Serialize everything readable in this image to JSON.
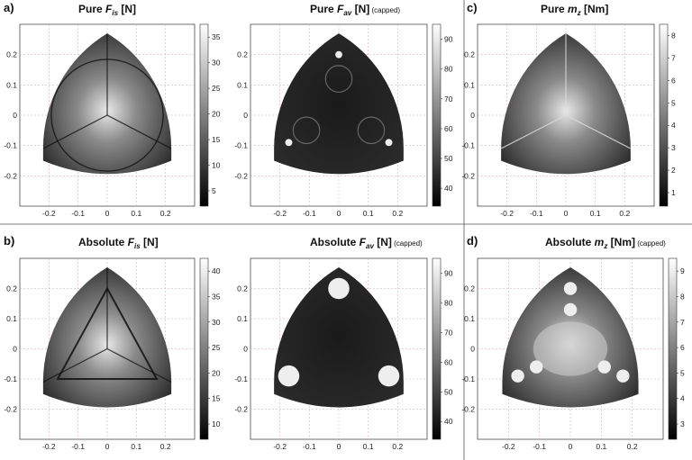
{
  "figure": {
    "panels": [
      {
        "id": "a",
        "letter": "a)",
        "word": "Pure",
        "sym": "F",
        "sub": "is",
        "unit": "[N]",
        "note": "",
        "cmap": [
          5,
          10,
          15,
          20,
          25,
          30,
          35
        ],
        "has_cb": true,
        "pattern": "pure_fis"
      },
      {
        "id": "pure-fav",
        "letter": "",
        "word": "Pure",
        "sym": "F",
        "sub": "av",
        "unit": "[N]",
        "note": "(capped)",
        "cmap": [
          40,
          50,
          60,
          70,
          80,
          90
        ],
        "has_cb": true,
        "pattern": "pure_fav"
      },
      {
        "id": "c",
        "letter": "c)",
        "word": "Pure",
        "sym": "m",
        "sub": "z",
        "unit": "[Nm]",
        "note": "",
        "cmap": [
          1,
          2,
          3,
          4,
          5,
          6,
          7,
          8
        ],
        "has_cb": true,
        "pattern": "pure_mz"
      },
      {
        "id": "b",
        "letter": "b)",
        "word": "Absolute",
        "sym": "F",
        "sub": "is",
        "unit": "[N]",
        "note": "",
        "cmap": [
          10,
          15,
          20,
          25,
          30,
          35,
          40
        ],
        "has_cb": true,
        "pattern": "abs_fis"
      },
      {
        "id": "abs-fav",
        "letter": "",
        "word": "Absolute",
        "sym": "F",
        "sub": "av",
        "unit": "[N]",
        "note": "(capped)",
        "cmap": [
          40,
          50,
          60,
          70,
          80,
          90
        ],
        "has_cb": true,
        "pattern": "abs_fav"
      },
      {
        "id": "d",
        "letter": "d)",
        "word": "Absolute",
        "sym": "m",
        "sub": "z",
        "unit": "[Nm]",
        "note": "(capped)",
        "cmap": [
          3,
          4,
          5,
          6,
          7,
          8,
          9
        ],
        "has_cb": true,
        "pattern": "abs_mz"
      }
    ]
  },
  "chart_data": [
    {
      "type": "heatmap",
      "title": "Pure F_is [N]",
      "xticks": [
        "-0.2",
        "-0.1",
        "0",
        "0.1",
        "0.2"
      ],
      "yticks": [
        "0.2",
        "0.1",
        "0",
        "-0.1",
        "-0.2"
      ],
      "colorbar_ticks": [
        5,
        10,
        15,
        20,
        25,
        30,
        35
      ],
      "colormap": "grayscale",
      "grid": true
    },
    {
      "type": "heatmap",
      "title": "Pure F_av [N] (capped)",
      "xticks": [
        "-0.2",
        "-0.1",
        "0",
        "0.1",
        "0.2"
      ],
      "yticks": [
        "0.2",
        "0.1",
        "0",
        "-0.1",
        "-0.2"
      ],
      "colorbar_ticks": [
        40,
        50,
        60,
        70,
        80,
        90
      ],
      "colormap": "grayscale",
      "grid": true
    },
    {
      "type": "heatmap",
      "title": "Pure m_z [Nm]",
      "xticks": [
        "-0.2",
        "-0.1",
        "0",
        "0.1",
        "0.2"
      ],
      "yticks": [
        "0.2",
        "0.1",
        "0",
        "-0.1",
        "-0.2"
      ],
      "colorbar_ticks": [
        1,
        2,
        3,
        4,
        5,
        6,
        7,
        8
      ],
      "colormap": "grayscale",
      "grid": true
    },
    {
      "type": "heatmap",
      "title": "Absolute F_is [N]",
      "xticks": [
        "-0.2",
        "-0.1",
        "0",
        "0.1",
        "0.2"
      ],
      "yticks": [
        "0.2",
        "0.1",
        "0",
        "-0.1",
        "-0.2"
      ],
      "colorbar_ticks": [
        10,
        15,
        20,
        25,
        30,
        35,
        40
      ],
      "colormap": "grayscale",
      "grid": true
    },
    {
      "type": "heatmap",
      "title": "Absolute F_av [N] (capped)",
      "xticks": [
        "-0.2",
        "-0.1",
        "0",
        "0.1",
        "0.2"
      ],
      "yticks": [
        "0.2",
        "0.1",
        "0",
        "-0.1",
        "-0.2"
      ],
      "colorbar_ticks": [
        40,
        50,
        60,
        70,
        80,
        90
      ],
      "colormap": "grayscale",
      "grid": true
    },
    {
      "type": "heatmap",
      "title": "Absolute m_z [Nm] (capped)",
      "xticks": [
        "-0.2",
        "-0.1",
        "0",
        "0.1",
        "0.2"
      ],
      "yticks": [
        "0.2",
        "0.1",
        "0",
        "-0.1",
        "-0.2"
      ],
      "colorbar_ticks": [
        3,
        4,
        5,
        6,
        7,
        8,
        9
      ],
      "colormap": "grayscale",
      "grid": true
    }
  ]
}
